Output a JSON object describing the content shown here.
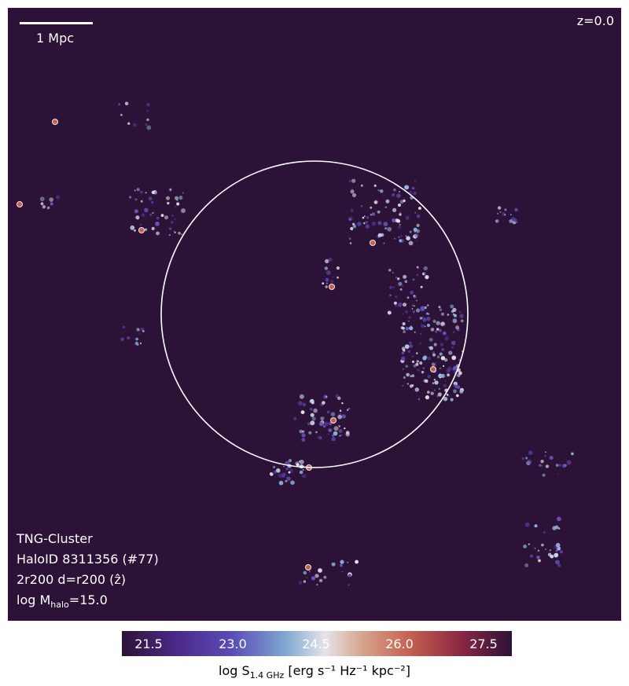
{
  "scalebar": {
    "label": "1 Mpc"
  },
  "redshift": "z=0.0",
  "info": {
    "simulation": "TNG-Cluster",
    "halo": "HaloID 8311356 (#77)",
    "projection": "2r200 d=r200 (ẑ)",
    "mass_prefix": "log M",
    "mass_sub": "halo",
    "mass_suffix": "=15.0"
  },
  "colorbar": {
    "ticks": [
      "21.5",
      "23.0",
      "24.5",
      "26.0",
      "27.5"
    ],
    "label_prefix": "log S",
    "label_sub": "1.4 GHz",
    "label_units": " [erg s⁻¹ Hz⁻¹ kpc⁻²]"
  },
  "colors": {
    "background": "#2c1236",
    "circle": "#ffffff"
  }
}
